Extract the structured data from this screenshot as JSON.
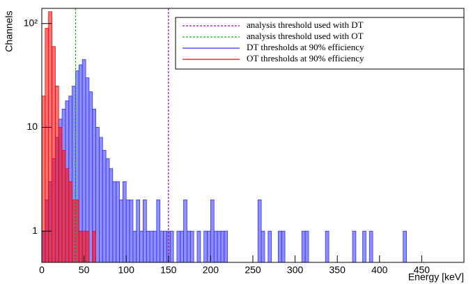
{
  "chart_data": {
    "type": "histogram",
    "ylabel": "Channels",
    "xlabel": "Energy [keV]",
    "log_y": true,
    "xlim": [
      0,
      500
    ],
    "xticks": [
      0,
      50,
      100,
      150,
      200,
      250,
      300,
      350,
      400,
      450
    ],
    "ylim": [
      0.5,
      140
    ],
    "yticks": [
      1,
      10,
      {
        "value": 100,
        "label": "10²"
      }
    ],
    "bins": [
      0,
      4,
      8,
      12,
      16,
      20,
      24,
      28,
      32,
      36,
      40,
      44,
      48,
      52,
      56,
      60,
      64,
      68,
      72,
      76,
      80,
      84,
      88,
      92,
      96,
      100,
      104,
      108,
      112,
      116,
      120,
      124,
      128,
      132,
      136,
      140,
      144,
      148,
      152,
      156,
      160,
      164,
      168,
      172,
      176,
      180,
      184,
      188,
      192,
      196,
      200,
      204,
      208,
      212,
      216,
      220,
      224,
      228,
      232,
      236,
      240,
      244,
      248,
      252,
      256,
      260,
      264,
      268,
      272,
      276,
      280,
      284,
      288,
      292,
      296,
      300,
      304,
      308,
      312,
      316,
      320,
      324,
      328,
      332,
      336,
      340,
      344,
      348,
      352,
      356,
      360,
      364,
      368,
      372,
      376,
      380,
      384,
      388,
      392,
      396,
      400,
      404,
      408,
      412,
      416,
      420,
      424,
      428,
      432,
      436,
      440
    ],
    "series": [
      {
        "name": "DT thresholds at 90% efficiency",
        "color": "#3333ff",
        "values": [
          1,
          2,
          3,
          5,
          8,
          12,
          15,
          18,
          20,
          25,
          35,
          40,
          45,
          30,
          22,
          15,
          10,
          8,
          6,
          5,
          4,
          3,
          3,
          2,
          3,
          2,
          2,
          1,
          2,
          1,
          2,
          1,
          1,
          1,
          2,
          1,
          1,
          1,
          1,
          0,
          1,
          1,
          2,
          1,
          1,
          0,
          1,
          0,
          1,
          1,
          2,
          1,
          1,
          1,
          1,
          0,
          0,
          0,
          0,
          0,
          0,
          0,
          0,
          0,
          2,
          1,
          0,
          1,
          0,
          0,
          1,
          1,
          0,
          0,
          0,
          0,
          0,
          1,
          1,
          0,
          0,
          0,
          0,
          0,
          1,
          0,
          0,
          0,
          0,
          0,
          0,
          0,
          1,
          0,
          0,
          1,
          0,
          1,
          0,
          0,
          0,
          0,
          0,
          0,
          0,
          0,
          0,
          1,
          0,
          0
        ]
      },
      {
        "name": "OT thresholds at 90% efficiency",
        "color": "#ff0000",
        "values": [
          20,
          90,
          130,
          60,
          25,
          10,
          6,
          4,
          3,
          2,
          2,
          1,
          1,
          1,
          0,
          1,
          0,
          0,
          0,
          0,
          0,
          0,
          0,
          0,
          0,
          0,
          0,
          0,
          0,
          0,
          0,
          0,
          0,
          0,
          0,
          0,
          0,
          0,
          0,
          0,
          0,
          0,
          0,
          0,
          0,
          0,
          0,
          0,
          0,
          0,
          0,
          0,
          0,
          0,
          0,
          0,
          0,
          0,
          0,
          0,
          0,
          0,
          0,
          0,
          0,
          0,
          0,
          0,
          0,
          0,
          0,
          0,
          0,
          0,
          0,
          0,
          0,
          0,
          0,
          0,
          0,
          0,
          0,
          0,
          0,
          0,
          0,
          0,
          0,
          0,
          0,
          0,
          0,
          0,
          0,
          0,
          0,
          0,
          0,
          0,
          0,
          0,
          0,
          0,
          0,
          0,
          0,
          0,
          0,
          0
        ]
      }
    ],
    "thresholds": [
      {
        "name": "analysis threshold used with DT",
        "value": 150,
        "color": "#a000d0"
      },
      {
        "name": "analysis threshold used with OT",
        "value": 40,
        "color": "#00c000"
      }
    ]
  }
}
